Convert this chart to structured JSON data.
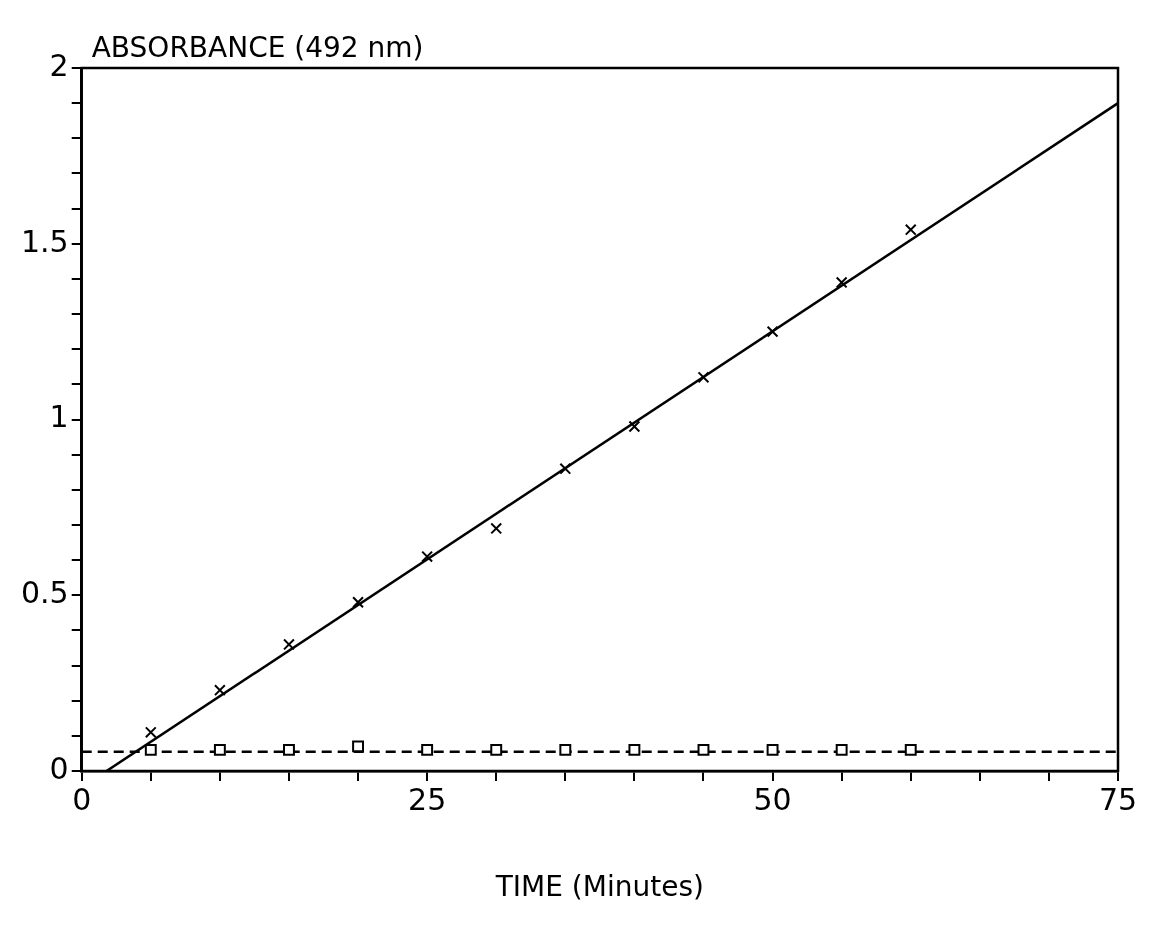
{
  "chart_data": {
    "type": "scatter",
    "ylabel": "ABSORBANCE (492 nm)",
    "xlabel": "TIME (Minutes)",
    "xlim": [
      0,
      75
    ],
    "ylim": [
      0,
      2
    ],
    "xticks": [
      0,
      {
        "value": 5,
        "label": null
      },
      {
        "value": 10,
        "label": null
      },
      {
        "value": 15,
        "label": null
      },
      {
        "value": 20,
        "label": null
      },
      25,
      {
        "value": 30,
        "label": null
      },
      {
        "value": 35,
        "label": null
      },
      {
        "value": 40,
        "label": null
      },
      {
        "value": 45,
        "label": null
      },
      50,
      {
        "value": 55,
        "label": null
      },
      {
        "value": 60,
        "label": null
      },
      {
        "value": 65,
        "label": null
      },
      {
        "value": 70,
        "label": null
      },
      75
    ],
    "yticks": [
      0,
      {
        "value": 0.1,
        "label": null
      },
      {
        "value": 0.2,
        "label": null
      },
      {
        "value": 0.3,
        "label": null
      },
      {
        "value": 0.4,
        "label": null
      },
      {
        "value": 0.5,
        "label": "0.5"
      },
      {
        "value": 0.6,
        "label": null
      },
      {
        "value": 0.7,
        "label": null
      },
      {
        "value": 0.8,
        "label": null
      },
      {
        "value": 0.9,
        "label": null
      },
      1,
      {
        "value": 1.1,
        "label": null
      },
      {
        "value": 1.2,
        "label": null
      },
      {
        "value": 1.3,
        "label": null
      },
      {
        "value": 1.4,
        "label": null
      },
      {
        "value": 1.5,
        "label": "1.5"
      },
      {
        "value": 1.6,
        "label": null
      },
      {
        "value": 1.7,
        "label": null
      },
      {
        "value": 1.8,
        "label": null
      },
      {
        "value": 1.9,
        "label": null
      },
      2
    ],
    "grid": false,
    "legend": false,
    "series": [
      {
        "type": "scatter",
        "color": "#000000",
        "marker": "cross",
        "x": [
          5,
          10,
          15,
          20,
          25,
          30,
          35,
          40,
          45,
          50,
          55,
          60
        ],
        "values": [
          0.11,
          0.23,
          0.36,
          0.48,
          0.61,
          0.69,
          0.86,
          0.98,
          1.12,
          1.25,
          1.39,
          1.54
        ]
      },
      {
        "type": "scatter",
        "color": "#000000",
        "marker": "square",
        "x": [
          5,
          10,
          15,
          20,
          25,
          30,
          35,
          40,
          45,
          50,
          55,
          60
        ],
        "values": [
          0.06,
          0.06,
          0.06,
          0.07,
          0.06,
          0.06,
          0.06,
          0.06,
          0.06,
          0.06,
          0.06,
          0.06
        ]
      },
      {
        "type": "line",
        "color": "#000000",
        "marker": "none",
        "line_style": "solid",
        "x": [
          1.8,
          75
        ],
        "values": [
          0,
          1.9
        ]
      },
      {
        "type": "line",
        "color": "#000000",
        "marker": "none",
        "line_style": "dashed",
        "x": [
          0,
          75
        ],
        "values": [
          0.055,
          0.055
        ]
      }
    ]
  }
}
